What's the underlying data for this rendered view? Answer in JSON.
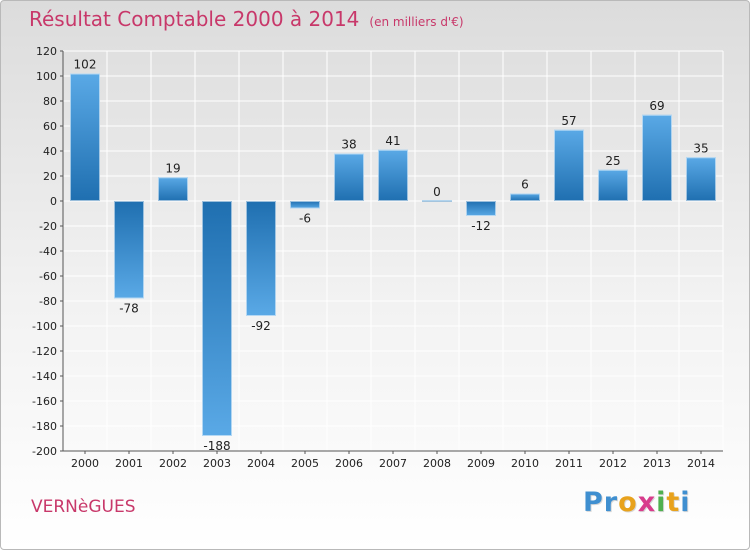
{
  "header": {
    "title": "Résultat Comptable 2000 à 2014",
    "subtitle": "(en milliers d'€)"
  },
  "footer": {
    "commune": "VERNèGUES",
    "logo_letters": [
      "P",
      "r",
      "o",
      "x",
      "i",
      "t",
      "i"
    ]
  },
  "colors": {
    "title": "#c8386a",
    "bar_dark": "#1f6fb0",
    "bar_light": "#5aa9e6",
    "grid": "#ffffff",
    "logo": [
      "#3f8fd0",
      "#3f8fd0",
      "#e8a21c",
      "#d83c8c",
      "#4fb04f",
      "#e8a21c",
      "#3f8fd0"
    ]
  },
  "chart_data": {
    "type": "bar",
    "title": "Résultat Comptable 2000 à 2014",
    "subtitle": "(en milliers d'€)",
    "categories": [
      "2000",
      "2001",
      "2002",
      "2003",
      "2004",
      "2005",
      "2006",
      "2007",
      "2008",
      "2009",
      "2010",
      "2011",
      "2012",
      "2013",
      "2014"
    ],
    "values": [
      102,
      -78,
      19,
      -188,
      -92,
      -6,
      38,
      41,
      0,
      -12,
      6,
      57,
      25,
      69,
      35
    ],
    "value_labels": [
      "102",
      "-78",
      "19",
      "-188",
      "-92",
      "-6",
      "38",
      "41",
      "0",
      "-12",
      "6",
      "57",
      "25",
      "69",
      "35"
    ],
    "ylim": [
      -200,
      120
    ],
    "yticks": [
      120,
      100,
      80,
      60,
      40,
      20,
      0,
      -20,
      -40,
      -60,
      -80,
      -100,
      -120,
      -140,
      -160,
      -180,
      -200
    ],
    "grid": true,
    "legend": false
  }
}
